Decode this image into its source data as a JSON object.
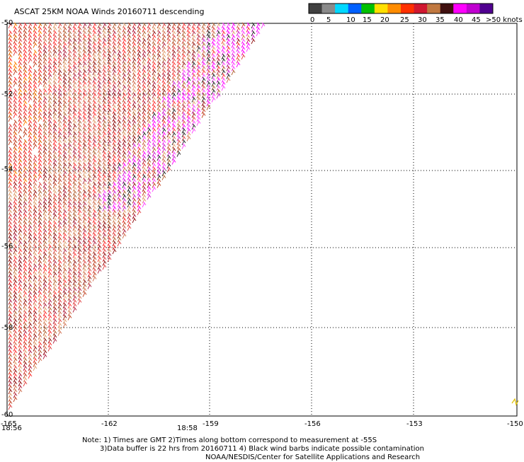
{
  "title": "ASCAT 25KM NOAA Winds 20160711 descending",
  "legend": {
    "labels": [
      "0",
      "5",
      "10",
      "15",
      "20",
      "25",
      "30",
      "35",
      "40",
      "45",
      ">50 knots"
    ],
    "colors": [
      "#404040",
      "#8a8a8a",
      "#00d8ff",
      "#0060ff",
      "#00c000",
      "#ffe000",
      "#ff8c00",
      "#ff3000",
      "#d01830",
      "#c07840",
      "#401010",
      "#ff00ff",
      "#c000d0",
      "#500090"
    ]
  },
  "axes": {
    "lat_labels": [
      "-50",
      "-52",
      "-54",
      "-56",
      "-58",
      "-60"
    ],
    "lon_labels": [
      "-165",
      "-162",
      "-159",
      "-156",
      "-153",
      "-150"
    ]
  },
  "times": [
    {
      "label": "18:56",
      "color": "#800080"
    },
    {
      "label": "18:58",
      "color": "#800080"
    }
  ],
  "wind_colors": [
    "#ff3030",
    "#e04040",
    "#c04020",
    "#b06030",
    "#d07050",
    "#e0a070",
    "#901010",
    "#b02040",
    "#ff40ff",
    "#ff00ff",
    "#d020d0",
    "#202020",
    "#ff8000",
    "#e06000"
  ],
  "notes": {
    "line1": "Note: 1) Times are GMT 2)Times along bottom correspond to measurement at -55S",
    "line2": "3)Data buffer is 22 hrs from 20160711 4) Black wind barbs indicate possible contamination",
    "line3": "NOAA/NESDIS/Center for Satellite Applications and Research"
  }
}
